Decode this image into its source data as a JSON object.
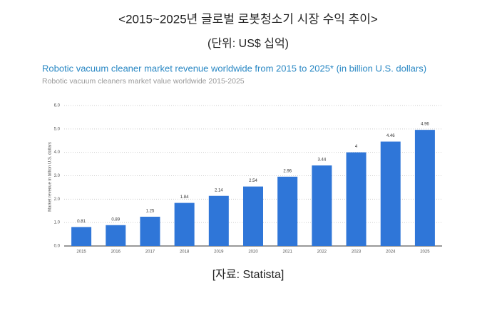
{
  "header": {
    "title": "<2015~2025년 글로벌 로봇청소기 시장 수익 추이>",
    "unit": "(단위: US$ 십억)"
  },
  "chart_data": {
    "type": "bar",
    "title": "Robotic vacuum cleaner market revenue worldwide from 2015 to 2025* (in billion U.S. dollars)",
    "subtitle": "Robotic vacuum cleaners market value worldwide 2015-2025",
    "y_label": "Market revenue in billion U.S. dollars",
    "categories": [
      "2015",
      "2016",
      "2017",
      "2018",
      "2019",
      "2020",
      "2021",
      "2022",
      "2023",
      "2024",
      "2025"
    ],
    "values": [
      0.81,
      0.89,
      1.25,
      1.84,
      2.14,
      2.54,
      2.96,
      3.44,
      4,
      4.46,
      4.96
    ],
    "color": "#2f76d8",
    "ylim": [
      0,
      6
    ],
    "yticks": [
      {
        "value": 0,
        "label": "0.0"
      },
      {
        "value": 1,
        "label": "1.0"
      },
      {
        "value": 2,
        "label": "2.0"
      },
      {
        "value": 3,
        "label": "3.0"
      },
      {
        "value": 4,
        "label": "4.0"
      },
      {
        "value": 5,
        "label": "5.0"
      },
      {
        "value": 6,
        "label": "6.0"
      }
    ],
    "grid": true
  },
  "source": "[자료: Statista]"
}
